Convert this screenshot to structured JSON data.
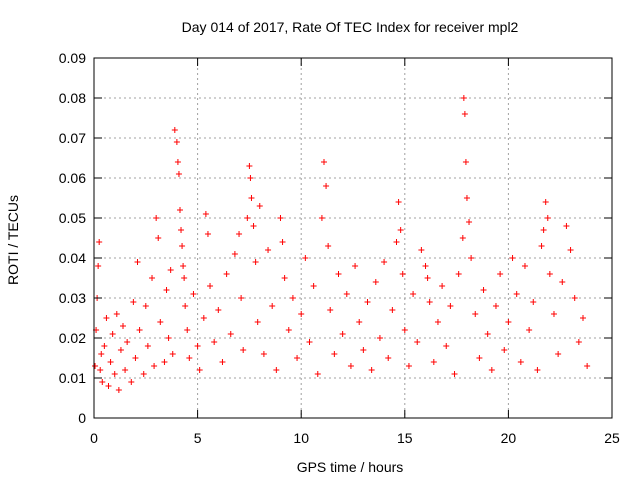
{
  "chart_data": {
    "type": "scatter",
    "title": "Day 014 of 2017, Rate Of TEC Index for receiver mpl2",
    "xlabel": "GPS time / hours",
    "ylabel": "ROTI / TECUs",
    "xlim": [
      0,
      25
    ],
    "ylim": [
      0,
      0.09
    ],
    "x_ticks": [
      "0",
      "5",
      "10",
      "15",
      "20",
      "25"
    ],
    "y_ticks": [
      "0",
      "0.01",
      "0.02",
      "0.03",
      "0.04",
      "0.05",
      "0.06",
      "0.07",
      "0.08",
      "0.09"
    ],
    "grid": true,
    "marker": "+",
    "color": "#ff0000",
    "series": [
      {
        "name": "ROTI",
        "points": [
          [
            0.05,
            0.013
          ],
          [
            0.1,
            0.022
          ],
          [
            0.15,
            0.03
          ],
          [
            0.2,
            0.038
          ],
          [
            0.25,
            0.044
          ],
          [
            0.3,
            0.012
          ],
          [
            0.35,
            0.016
          ],
          [
            0.4,
            0.009
          ],
          [
            0.5,
            0.018
          ],
          [
            0.6,
            0.025
          ],
          [
            0.7,
            0.008
          ],
          [
            0.8,
            0.014
          ],
          [
            0.9,
            0.021
          ],
          [
            1.0,
            0.011
          ],
          [
            1.1,
            0.026
          ],
          [
            1.2,
            0.007
          ],
          [
            1.3,
            0.017
          ],
          [
            1.4,
            0.023
          ],
          [
            1.5,
            0.012
          ],
          [
            1.6,
            0.019
          ],
          [
            1.8,
            0.009
          ],
          [
            1.9,
            0.029
          ],
          [
            2.0,
            0.015
          ],
          [
            2.1,
            0.039
          ],
          [
            2.2,
            0.022
          ],
          [
            2.4,
            0.011
          ],
          [
            2.5,
            0.028
          ],
          [
            2.6,
            0.018
          ],
          [
            2.8,
            0.035
          ],
          [
            2.9,
            0.013
          ],
          [
            3.0,
            0.05
          ],
          [
            3.1,
            0.045
          ],
          [
            3.2,
            0.024
          ],
          [
            3.4,
            0.014
          ],
          [
            3.5,
            0.032
          ],
          [
            3.6,
            0.02
          ],
          [
            3.7,
            0.037
          ],
          [
            3.8,
            0.016
          ],
          [
            3.9,
            0.072
          ],
          [
            4.0,
            0.069
          ],
          [
            4.05,
            0.064
          ],
          [
            4.1,
            0.061
          ],
          [
            4.15,
            0.052
          ],
          [
            4.2,
            0.047
          ],
          [
            4.25,
            0.043
          ],
          [
            4.3,
            0.038
          ],
          [
            4.35,
            0.035
          ],
          [
            4.4,
            0.028
          ],
          [
            4.5,
            0.022
          ],
          [
            4.6,
            0.015
          ],
          [
            4.8,
            0.031
          ],
          [
            5.0,
            0.018
          ],
          [
            5.1,
            0.012
          ],
          [
            5.3,
            0.025
          ],
          [
            5.4,
            0.051
          ],
          [
            5.5,
            0.046
          ],
          [
            5.6,
            0.033
          ],
          [
            5.8,
            0.019
          ],
          [
            6.0,
            0.027
          ],
          [
            6.2,
            0.014
          ],
          [
            6.4,
            0.036
          ],
          [
            6.6,
            0.021
          ],
          [
            6.8,
            0.041
          ],
          [
            7.0,
            0.046
          ],
          [
            7.1,
            0.03
          ],
          [
            7.2,
            0.017
          ],
          [
            7.4,
            0.05
          ],
          [
            7.5,
            0.063
          ],
          [
            7.55,
            0.06
          ],
          [
            7.6,
            0.055
          ],
          [
            7.7,
            0.048
          ],
          [
            7.8,
            0.039
          ],
          [
            7.9,
            0.024
          ],
          [
            8.0,
            0.053
          ],
          [
            8.2,
            0.016
          ],
          [
            8.4,
            0.042
          ],
          [
            8.6,
            0.028
          ],
          [
            8.8,
            0.012
          ],
          [
            9.0,
            0.05
          ],
          [
            9.1,
            0.044
          ],
          [
            9.2,
            0.035
          ],
          [
            9.4,
            0.022
          ],
          [
            9.6,
            0.03
          ],
          [
            9.8,
            0.015
          ],
          [
            10.0,
            0.026
          ],
          [
            10.2,
            0.04
          ],
          [
            10.4,
            0.019
          ],
          [
            10.6,
            0.033
          ],
          [
            10.8,
            0.011
          ],
          [
            11.0,
            0.05
          ],
          [
            11.1,
            0.064
          ],
          [
            11.2,
            0.058
          ],
          [
            11.3,
            0.043
          ],
          [
            11.4,
            0.027
          ],
          [
            11.6,
            0.016
          ],
          [
            11.8,
            0.036
          ],
          [
            12.0,
            0.021
          ],
          [
            12.2,
            0.031
          ],
          [
            12.4,
            0.013
          ],
          [
            12.6,
            0.038
          ],
          [
            12.8,
            0.024
          ],
          [
            13.0,
            0.017
          ],
          [
            13.2,
            0.029
          ],
          [
            13.4,
            0.012
          ],
          [
            13.6,
            0.034
          ],
          [
            13.8,
            0.02
          ],
          [
            14.0,
            0.039
          ],
          [
            14.2,
            0.015
          ],
          [
            14.4,
            0.027
          ],
          [
            14.6,
            0.044
          ],
          [
            14.7,
            0.054
          ],
          [
            14.8,
            0.047
          ],
          [
            14.9,
            0.036
          ],
          [
            15.0,
            0.022
          ],
          [
            15.2,
            0.013
          ],
          [
            15.4,
            0.031
          ],
          [
            15.6,
            0.019
          ],
          [
            15.8,
            0.042
          ],
          [
            16.0,
            0.038
          ],
          [
            16.1,
            0.035
          ],
          [
            16.2,
            0.029
          ],
          [
            16.4,
            0.014
          ],
          [
            16.6,
            0.024
          ],
          [
            16.8,
            0.033
          ],
          [
            17.0,
            0.018
          ],
          [
            17.2,
            0.028
          ],
          [
            17.4,
            0.011
          ],
          [
            17.6,
            0.036
          ],
          [
            17.8,
            0.045
          ],
          [
            17.85,
            0.08
          ],
          [
            17.9,
            0.076
          ],
          [
            17.95,
            0.064
          ],
          [
            18.0,
            0.055
          ],
          [
            18.1,
            0.049
          ],
          [
            18.2,
            0.04
          ],
          [
            18.4,
            0.026
          ],
          [
            18.6,
            0.015
          ],
          [
            18.8,
            0.032
          ],
          [
            19.0,
            0.021
          ],
          [
            19.2,
            0.012
          ],
          [
            19.4,
            0.028
          ],
          [
            19.6,
            0.036
          ],
          [
            19.8,
            0.017
          ],
          [
            20.0,
            0.024
          ],
          [
            20.2,
            0.04
          ],
          [
            20.4,
            0.031
          ],
          [
            20.6,
            0.014
          ],
          [
            20.8,
            0.038
          ],
          [
            21.0,
            0.022
          ],
          [
            21.2,
            0.029
          ],
          [
            21.4,
            0.012
          ],
          [
            21.6,
            0.043
          ],
          [
            21.7,
            0.047
          ],
          [
            21.8,
            0.054
          ],
          [
            21.9,
            0.05
          ],
          [
            22.0,
            0.036
          ],
          [
            22.2,
            0.026
          ],
          [
            22.4,
            0.016
          ],
          [
            22.6,
            0.034
          ],
          [
            22.8,
            0.048
          ],
          [
            23.0,
            0.042
          ],
          [
            23.2,
            0.03
          ],
          [
            23.4,
            0.019
          ],
          [
            23.6,
            0.025
          ],
          [
            23.8,
            0.013
          ]
        ]
      }
    ]
  }
}
